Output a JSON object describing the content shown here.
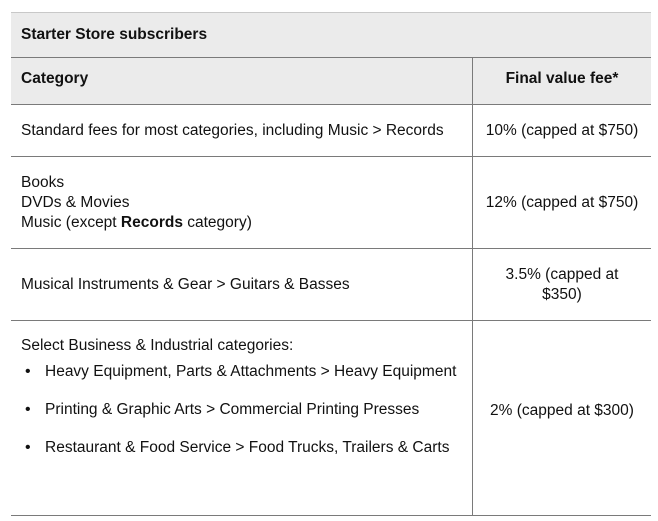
{
  "table": {
    "title": "Starter Store subscribers",
    "headers": {
      "category": "Category",
      "fee": "Final value fee*"
    },
    "rows": [
      {
        "category": "Standard fees for most categories, including Music > Records",
        "fee": "10% (capped at $750)"
      },
      {
        "lines": [
          "Books",
          "DVDs & Movies"
        ],
        "music_pre": "Music (except ",
        "music_bold": "Records",
        "music_post": " category)",
        "fee": "12% (capped at $750)"
      },
      {
        "category": "Musical Instruments & Gear > Guitars & Basses",
        "fee": "3.5% (capped at $350)"
      },
      {
        "intro": "Select Business & Industrial categories:",
        "bullets": [
          "Heavy Equipment, Parts & Attachments > Heavy Equipment",
          "Printing & Graphic Arts > Commercial Printing Presses",
          "Restaurant & Food Service > Food Trucks, Trailers & Carts"
        ],
        "fee": "2% (capped at $300)"
      }
    ]
  }
}
